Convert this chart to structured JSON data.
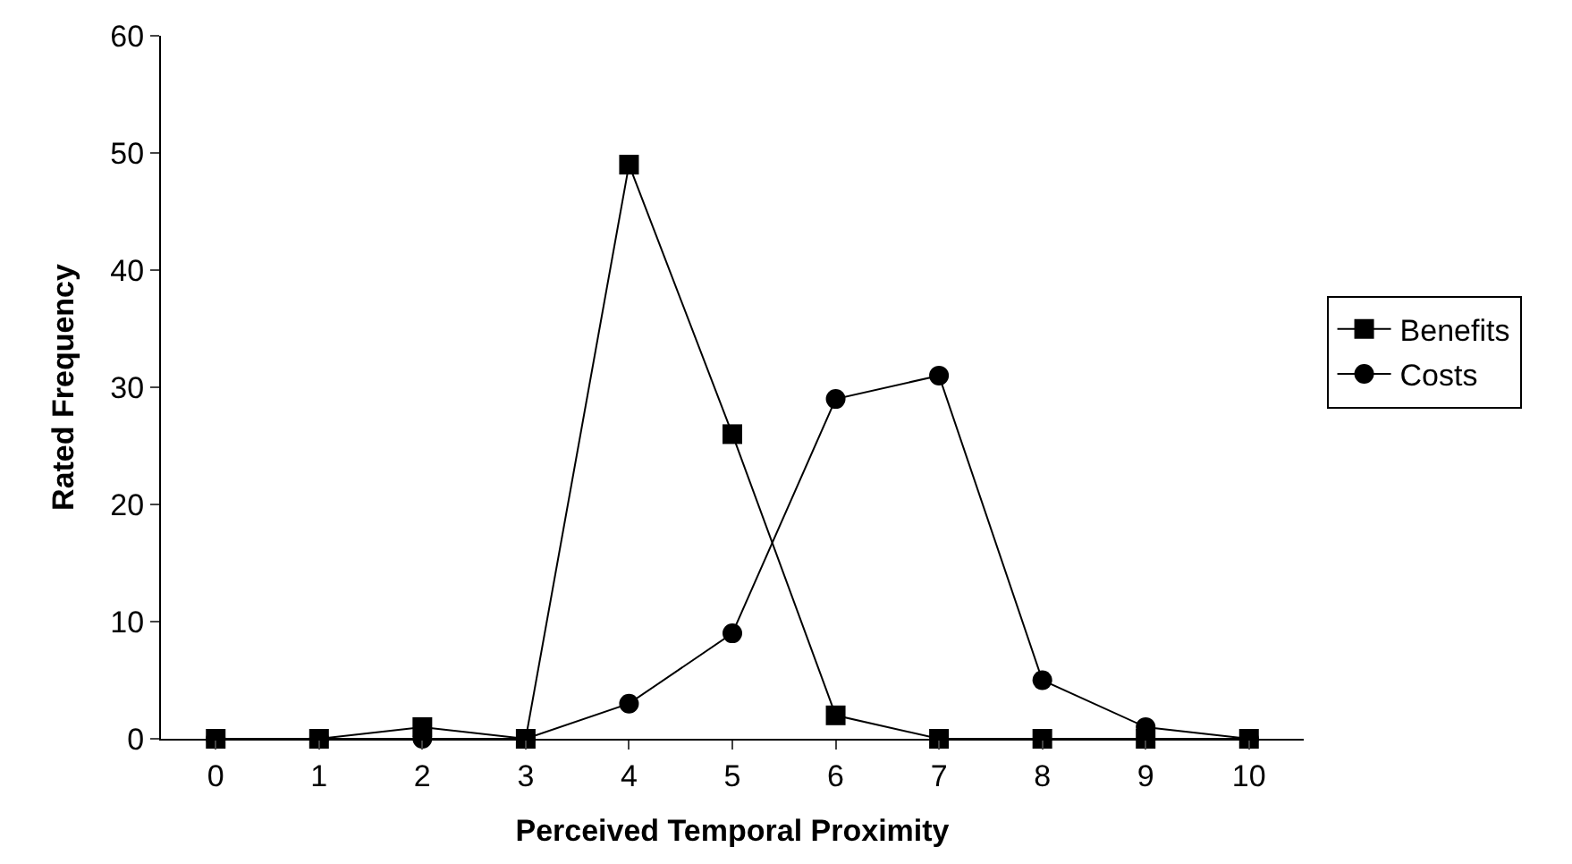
{
  "chart_data": {
    "type": "line",
    "xlabel": "Perceived Temporal Proximity",
    "ylabel": "Rated Frequency",
    "categories": [
      "0",
      "1",
      "2",
      "3",
      "4",
      "5",
      "6",
      "7",
      "8",
      "9",
      "10"
    ],
    "series": [
      {
        "name": "Benefits",
        "color": "#000000",
        "marker": "square",
        "values": [
          0,
          0,
          1,
          0,
          49,
          26,
          2,
          0,
          0,
          0,
          0
        ]
      },
      {
        "name": "Costs",
        "color": "#000000",
        "marker": "circle",
        "values": [
          0,
          0,
          0,
          0,
          3,
          9,
          29,
          31,
          5,
          1,
          0
        ]
      }
    ],
    "ylim": [
      0,
      60
    ],
    "yticks": [
      0,
      10,
      20,
      30,
      40,
      50,
      60
    ],
    "legend": "right",
    "line_style": "solid"
  }
}
